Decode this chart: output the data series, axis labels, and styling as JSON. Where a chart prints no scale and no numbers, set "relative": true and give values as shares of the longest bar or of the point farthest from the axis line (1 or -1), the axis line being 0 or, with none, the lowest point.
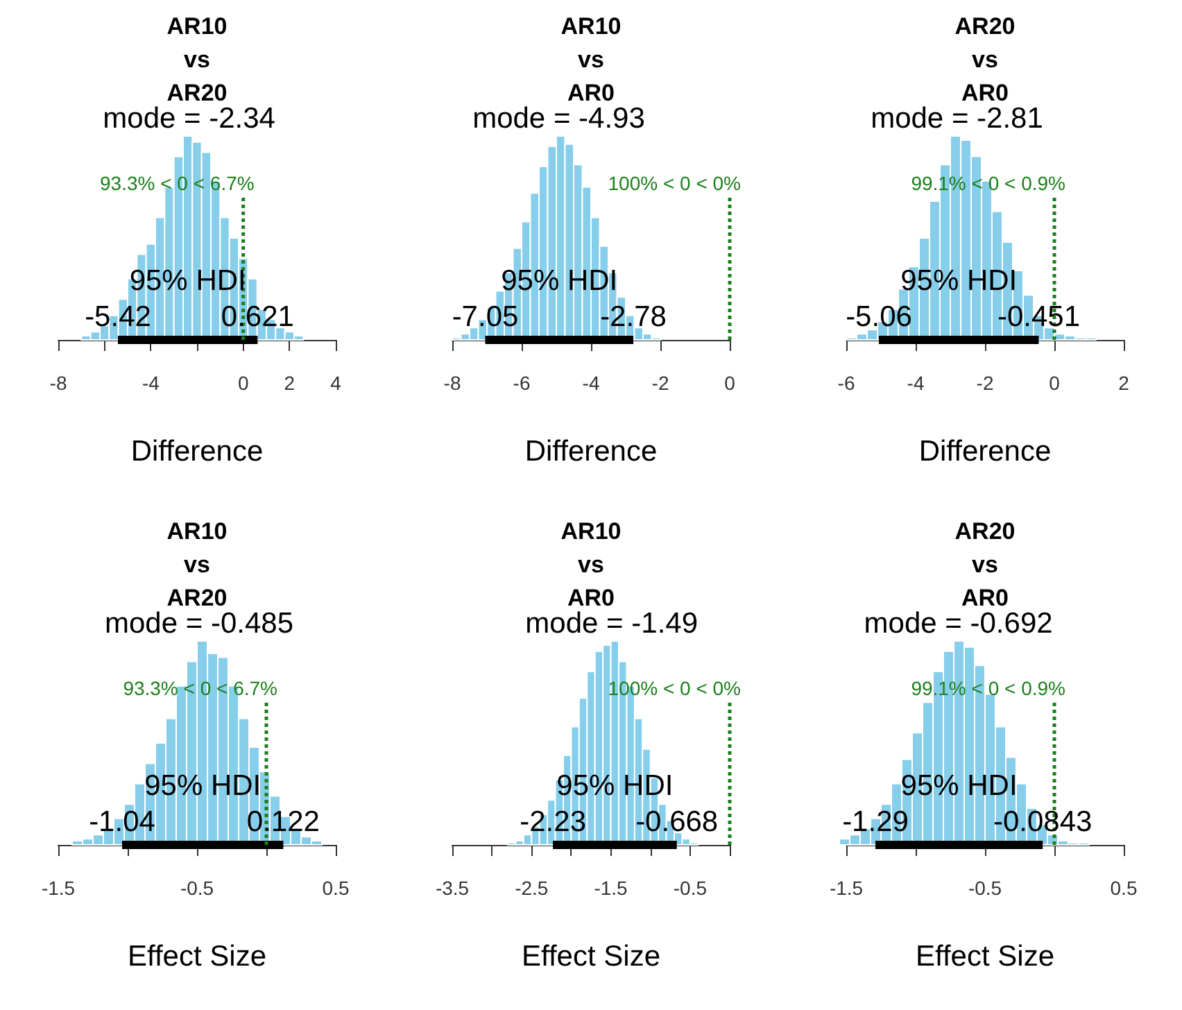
{
  "chart_data": [
    {
      "type": "histogram",
      "title": "AR10\nvs\nAR20",
      "xlabel": "Difference",
      "relative": true,
      "xlim": [
        -8,
        4
      ],
      "xticks": [
        -8,
        {
          "value": -6,
          "label": null
        },
        -4,
        {
          "value": -2,
          "label": null
        },
        0,
        2,
        4
      ],
      "series": [
        {
          "type": "histogram",
          "color": "#87ceeb",
          "bins": [
            -7,
            -6.6,
            -6.2,
            -5.8,
            -5.4,
            -5,
            -4.6,
            -4.2,
            -3.8,
            -3.4,
            -3,
            -2.6,
            -2.2,
            -1.8,
            -1.4,
            -1,
            -0.6,
            -0.2,
            0.2,
            0.6,
            1,
            1.4,
            1.8,
            2.2,
            2.6
          ],
          "values": [
            0.02,
            0.04,
            0.07,
            0.12,
            0.2,
            0.3,
            0.42,
            0.47,
            0.6,
            0.75,
            0.9,
            1.0,
            0.97,
            0.92,
            0.78,
            0.6,
            0.5,
            0.4,
            0.3,
            0.15,
            0.1,
            0.06,
            0.04,
            0.02
          ]
        },
        {
          "type": "line",
          "color": "#000000",
          "x": [
            -5.42,
            0.621
          ],
          "values": [
            0,
            0
          ]
        },
        {
          "type": "line",
          "color": "#1a7f1a",
          "line_style": "dotted",
          "x": [
            0,
            0
          ],
          "values": [
            0,
            0.7
          ]
        }
      ],
      "annotations": [
        {
          "text": "mode = -2.34",
          "x": -2.34,
          "y": 1
        },
        {
          "text": "93.3% < 0 < 6.7%",
          "x": 0,
          "y": 0.7
        },
        "95% HDI",
        {
          "text": "-5.42",
          "x": -5.42,
          "y": 0
        },
        {
          "text": "0.621",
          "x": 0.621,
          "y": 0
        }
      ]
    },
    {
      "type": "histogram",
      "title": "AR10\nvs\nAR0",
      "xlabel": "Difference",
      "relative": true,
      "xlim": [
        -8,
        0
      ],
      "xticks": [
        -8,
        -6,
        -4,
        -2,
        0
      ],
      "series": [
        {
          "type": "histogram",
          "color": "#87ceeb",
          "bins": [
            -8,
            -7.75,
            -7.5,
            -7.25,
            -7,
            -6.75,
            -6.5,
            -6.25,
            -6,
            -5.75,
            -5.5,
            -5.25,
            -5,
            -4.75,
            -4.5,
            -4.25,
            -4,
            -3.75,
            -3.5,
            -3.25,
            -3,
            -2.75,
            -2.5,
            -2.25,
            -2
          ],
          "values": [
            0.01,
            0.03,
            0.06,
            0.1,
            0.16,
            0.24,
            0.33,
            0.45,
            0.58,
            0.72,
            0.85,
            0.95,
            1.0,
            0.96,
            0.86,
            0.75,
            0.6,
            0.46,
            0.33,
            0.21,
            0.12,
            0.06,
            0.03,
            0.01
          ]
        },
        {
          "type": "line",
          "color": "#000000",
          "x": [
            -7.05,
            -2.78
          ],
          "values": [
            0,
            0
          ]
        },
        {
          "type": "line",
          "color": "#1a7f1a",
          "line_style": "dotted",
          "x": [
            0,
            0
          ],
          "values": [
            0,
            0.7
          ]
        }
      ],
      "annotations": [
        {
          "text": "mode = -4.93",
          "x": -4.93,
          "y": 1
        },
        {
          "text": "100% < 0 < 0%",
          "x": 0,
          "y": 0.7
        },
        "95% HDI",
        {
          "text": "-7.05",
          "x": -7.05,
          "y": 0
        },
        {
          "text": "-2.78",
          "x": -2.78,
          "y": 0
        }
      ]
    },
    {
      "type": "histogram",
      "title": "AR20\nvs\nAR0",
      "xlabel": "Difference",
      "relative": true,
      "xlim": [
        -6,
        2
      ],
      "xticks": [
        -6,
        -4,
        -2,
        0,
        2
      ],
      "series": [
        {
          "type": "histogram",
          "color": "#87ceeb",
          "bins": [
            -6,
            -5.7,
            -5.4,
            -5.1,
            -4.8,
            -4.5,
            -4.2,
            -3.9,
            -3.6,
            -3.3,
            -3,
            -2.7,
            -2.4,
            -2.1,
            -1.8,
            -1.5,
            -1.2,
            -0.9,
            -0.6,
            -0.3,
            0,
            0.3,
            0.6,
            0.9,
            1.2
          ],
          "values": [
            0.01,
            0.03,
            0.05,
            0.09,
            0.15,
            0.25,
            0.36,
            0.5,
            0.68,
            0.86,
            1.0,
            0.98,
            0.9,
            0.78,
            0.63,
            0.48,
            0.34,
            0.22,
            0.12,
            0.06,
            0.03,
            0.02,
            0.01,
            0.01
          ]
        },
        {
          "type": "line",
          "color": "#000000",
          "x": [
            -5.06,
            -0.451
          ],
          "values": [
            0,
            0
          ]
        },
        {
          "type": "line",
          "color": "#1a7f1a",
          "line_style": "dotted",
          "x": [
            0,
            0
          ],
          "values": [
            0,
            0.7
          ]
        }
      ],
      "annotations": [
        {
          "text": "mode = -2.81",
          "x": -2.81,
          "y": 1
        },
        {
          "text": "99.1% < 0 < 0.9%",
          "x": 0,
          "y": 0.7
        },
        "95% HDI",
        {
          "text": "-5.06",
          "x": -5.06,
          "y": 0
        },
        {
          "text": "-0.451",
          "x": -0.451,
          "y": 0
        }
      ]
    },
    {
      "type": "histogram",
      "title": "AR10\nvs\nAR20",
      "xlabel": "Effect Size",
      "relative": true,
      "xlim": [
        -1.5,
        0.5
      ],
      "xticks": [
        -1.5,
        {
          "value": -1,
          "label": null
        },
        -0.5,
        {
          "value": 0,
          "label": null
        },
        0.5
      ],
      "series": [
        {
          "type": "histogram",
          "color": "#87ceeb",
          "bins": [
            -1.4,
            -1.325,
            -1.25,
            -1.175,
            -1.1,
            -1.025,
            -0.95,
            -0.875,
            -0.8,
            -0.725,
            -0.65,
            -0.575,
            -0.5,
            -0.425,
            -0.35,
            -0.275,
            -0.2,
            -0.125,
            -0.05,
            0.025,
            0.1,
            0.175,
            0.25,
            0.325,
            0.4
          ],
          "values": [
            0.02,
            0.03,
            0.05,
            0.08,
            0.13,
            0.2,
            0.3,
            0.4,
            0.5,
            0.62,
            0.78,
            0.9,
            1.0,
            0.94,
            0.92,
            0.78,
            0.62,
            0.48,
            0.36,
            0.24,
            0.14,
            0.08,
            0.04,
            0.02
          ]
        },
        {
          "type": "line",
          "color": "#000000",
          "x": [
            -1.04,
            0.122
          ],
          "values": [
            0,
            0
          ]
        },
        {
          "type": "line",
          "color": "#1a7f1a",
          "line_style": "dotted",
          "x": [
            0,
            0
          ],
          "values": [
            0,
            0.7
          ]
        }
      ],
      "annotations": [
        {
          "text": "mode = -0.485",
          "x": -0.485,
          "y": 1
        },
        {
          "text": "93.3% < 0 < 6.7%",
          "x": 0,
          "y": 0.7
        },
        "95% HDI",
        {
          "text": "-1.04",
          "x": -1.04,
          "y": 0
        },
        {
          "text": "0.122",
          "x": 0.122,
          "y": 0
        }
      ]
    },
    {
      "type": "histogram",
      "title": "AR10\nvs\nAR0",
      "xlabel": "Effect Size",
      "relative": true,
      "xlim": [
        -3.5,
        0
      ],
      "xticks": [
        -3.5,
        {
          "value": -3,
          "label": null
        },
        -2.5,
        {
          "value": -2,
          "label": null
        },
        -1.5,
        {
          "value": -1,
          "label": null
        },
        -0.5,
        {
          "value": 0,
          "label": null
        }
      ],
      "series": [
        {
          "type": "histogram",
          "color": "#87ceeb",
          "bins": [
            -2.8,
            -2.7,
            -2.6,
            -2.5,
            -2.4,
            -2.3,
            -2.2,
            -2.1,
            -2,
            -1.9,
            -1.8,
            -1.7,
            -1.6,
            -1.5,
            -1.4,
            -1.3,
            -1.2,
            -1.1,
            -1,
            -0.9,
            -0.8,
            -0.7,
            -0.6,
            -0.5,
            -0.4
          ],
          "values": [
            0.01,
            0.02,
            0.05,
            0.09,
            0.15,
            0.22,
            0.32,
            0.44,
            0.58,
            0.72,
            0.85,
            0.95,
            0.98,
            1.0,
            0.9,
            0.78,
            0.62,
            0.47,
            0.33,
            0.2,
            0.12,
            0.06,
            0.03,
            0.01
          ]
        },
        {
          "type": "line",
          "color": "#000000",
          "x": [
            -2.23,
            -0.668
          ],
          "values": [
            0,
            0
          ]
        },
        {
          "type": "line",
          "color": "#1a7f1a",
          "line_style": "dotted",
          "x": [
            0,
            0
          ],
          "values": [
            0,
            0.7
          ]
        }
      ],
      "annotations": [
        {
          "text": "mode = -1.49",
          "x": -1.49,
          "y": 1
        },
        {
          "text": "100% < 0 < 0%",
          "x": 0,
          "y": 0.7
        },
        "95% HDI",
        {
          "text": "-2.23",
          "x": -2.23,
          "y": 0
        },
        {
          "text": "-0.668",
          "x": -0.668,
          "y": 0
        }
      ]
    },
    {
      "type": "histogram",
      "title": "AR20\nvs\nAR0",
      "xlabel": "Effect Size",
      "relative": true,
      "xlim": [
        -1.5,
        0.5
      ],
      "xticks": [
        -1.5,
        {
          "value": -1,
          "label": null
        },
        -0.5,
        {
          "value": 0,
          "label": null
        },
        0.5
      ],
      "series": [
        {
          "type": "histogram",
          "color": "#87ceeb",
          "bins": [
            -1.55,
            -1.475,
            -1.4,
            -1.325,
            -1.25,
            -1.175,
            -1.1,
            -1.025,
            -0.95,
            -0.875,
            -0.8,
            -0.725,
            -0.65,
            -0.575,
            -0.5,
            -0.425,
            -0.35,
            -0.275,
            -0.2,
            -0.125,
            -0.05,
            0.025,
            0.1,
            0.175,
            0.25
          ],
          "values": [
            0.03,
            0.05,
            0.08,
            0.13,
            0.2,
            0.3,
            0.42,
            0.55,
            0.7,
            0.85,
            0.95,
            1.0,
            0.97,
            0.88,
            0.74,
            0.58,
            0.43,
            0.3,
            0.18,
            0.1,
            0.05,
            0.02,
            0.01,
            0.01
          ]
        },
        {
          "type": "line",
          "color": "#000000",
          "x": [
            -1.29,
            -0.0843
          ],
          "values": [
            0,
            0
          ]
        },
        {
          "type": "line",
          "color": "#1a7f1a",
          "line_style": "dotted",
          "x": [
            0,
            0
          ],
          "values": [
            0,
            0.7
          ]
        }
      ],
      "annotations": [
        {
          "text": "mode = -0.692",
          "x": -0.692,
          "y": 1
        },
        {
          "text": "99.1% < 0 < 0.9%",
          "x": 0,
          "y": 0.7
        },
        "95% HDI",
        {
          "text": "-1.29",
          "x": -1.29,
          "y": 0
        },
        {
          "text": "-0.0843",
          "x": -0.0843,
          "y": 0
        }
      ]
    }
  ]
}
